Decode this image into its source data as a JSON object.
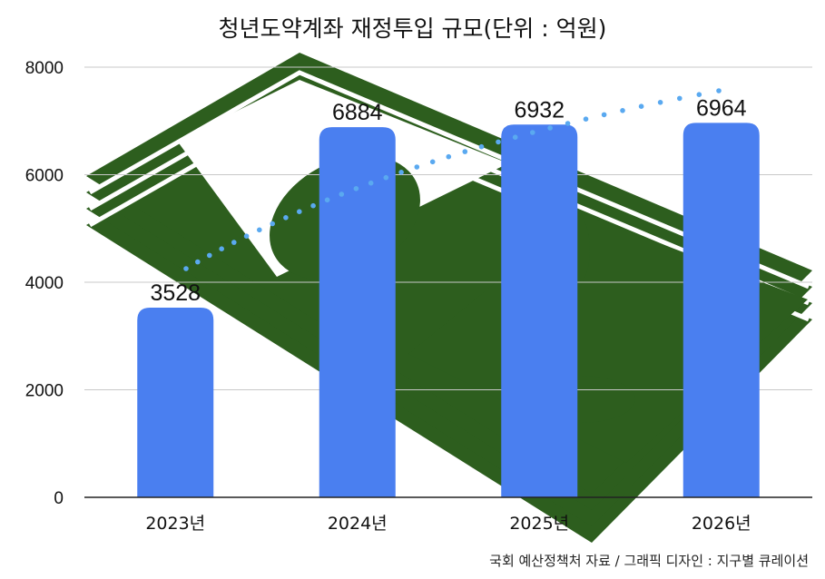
{
  "chart_data": {
    "type": "bar",
    "title": "청년도약계좌 재정투입 규모(단위 : 억원)",
    "categories": [
      "2023년",
      "2024년",
      "2025년",
      "2026년"
    ],
    "values": [
      3528,
      6884,
      6932,
      6964
    ],
    "ylim": [
      0,
      8000
    ],
    "yticks": [
      0,
      2000,
      4000,
      6000,
      8000
    ],
    "grid": true,
    "legend": "none",
    "trend_line": "dotted upward trend",
    "colors": {
      "bar": "#4a7ff0",
      "trend": "#5aa9f0",
      "background_money": "#2d5e1e"
    }
  },
  "footer": {
    "source": "국회 예산정책처 자료 / 그래픽 디자인 : 지구별 큐레이션"
  }
}
